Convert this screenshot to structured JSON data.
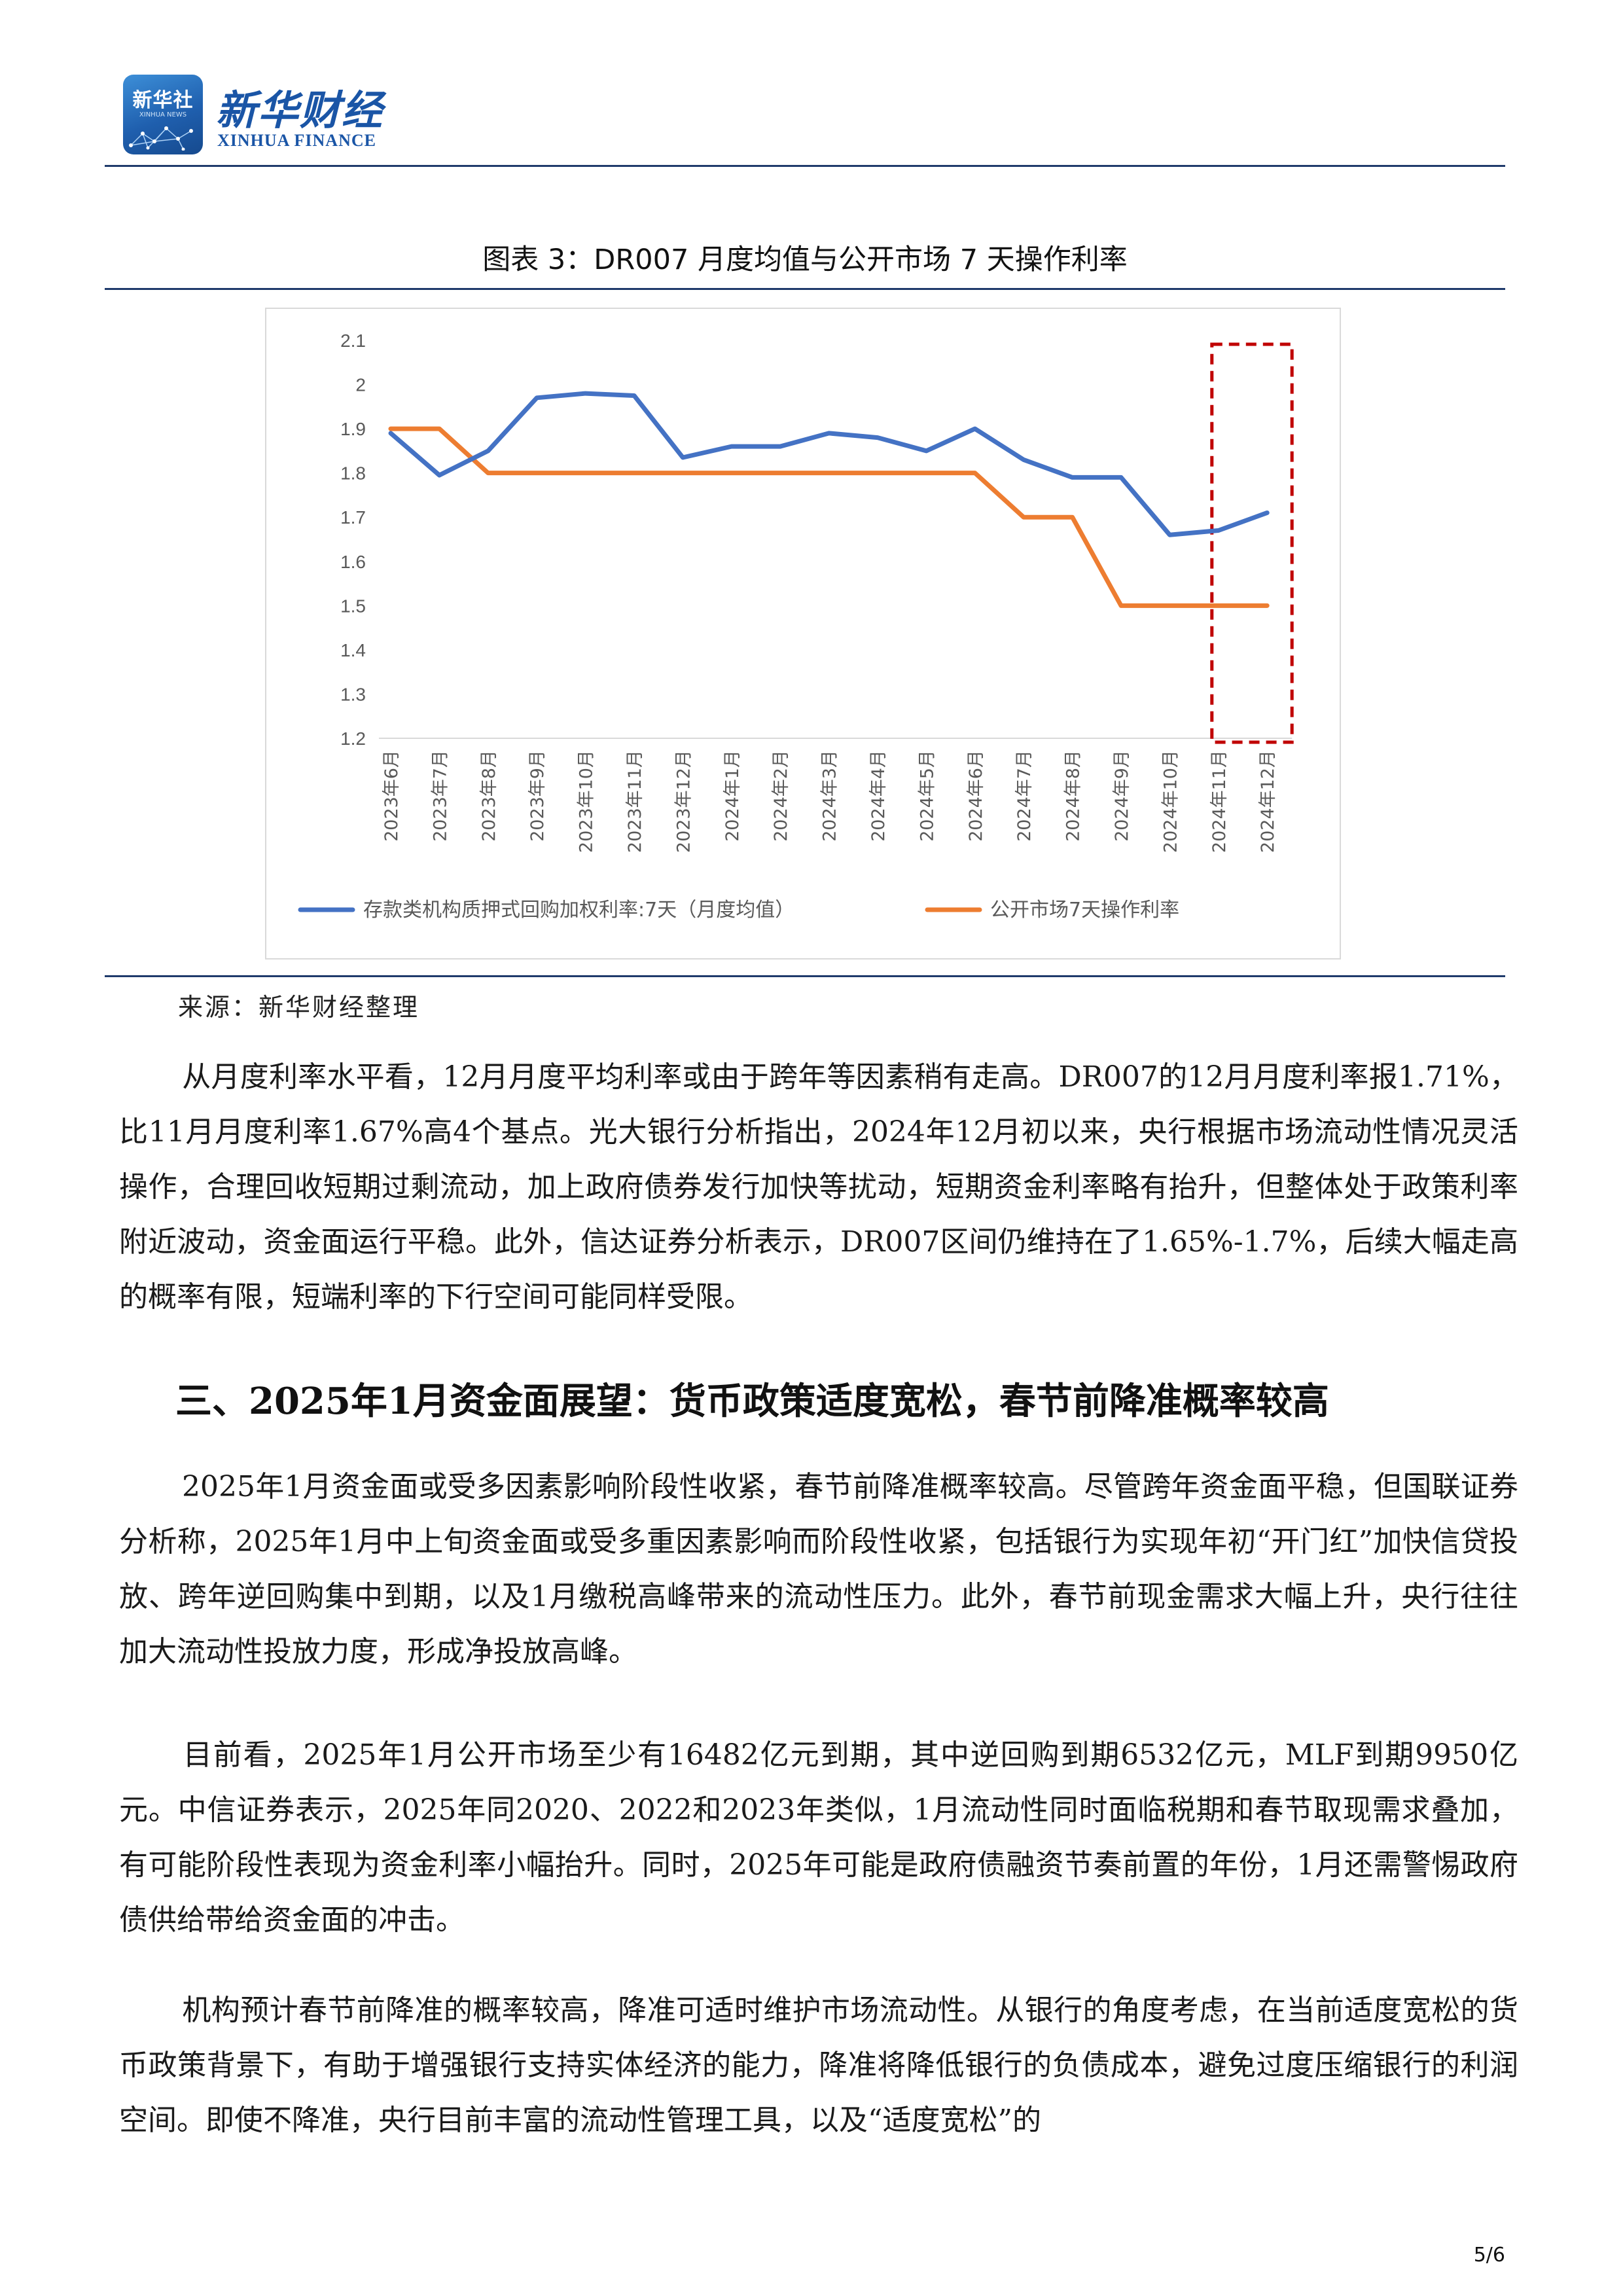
{
  "header": {
    "badge_text": "新华社",
    "badge_sub": "XINHUA NEWS",
    "brand_cn": "新华财经",
    "brand_en": "XINHUA FINANCE"
  },
  "figure": {
    "title": "图表 3：DR007 月度均值与公开市场 7 天操作利率",
    "source": "来源：新华财经整理"
  },
  "chart_data": {
    "type": "line",
    "categories": [
      "2023年6月",
      "2023年7月",
      "2023年8月",
      "2023年9月",
      "2023年10月",
      "2023年11月",
      "2023年12月",
      "2024年1月",
      "2024年2月",
      "2024年3月",
      "2024年4月",
      "2024年5月",
      "2024年6月",
      "2024年7月",
      "2024年8月",
      "2024年9月",
      "2024年10月",
      "2024年11月",
      "2024年12月"
    ],
    "series": [
      {
        "name": "存款类机构质押式回购加权利率:7天（月度均值）",
        "color": "#4472C4",
        "values": [
          1.89,
          1.795,
          1.85,
          1.97,
          1.98,
          1.975,
          1.835,
          1.86,
          1.86,
          1.89,
          1.88,
          1.85,
          1.9,
          1.83,
          1.79,
          1.79,
          1.66,
          1.67,
          1.71
        ]
      },
      {
        "name": "公开市场7天操作利率",
        "color": "#ED7D31",
        "values": [
          1.9,
          1.9,
          1.8,
          1.8,
          1.8,
          1.8,
          1.8,
          1.8,
          1.8,
          1.8,
          1.8,
          1.8,
          1.8,
          1.7,
          1.7,
          1.5,
          1.5,
          1.5,
          1.5
        ]
      }
    ],
    "y_ticks": [
      "2.1",
      "2",
      "1.9",
      "1.8",
      "1.7",
      "1.6",
      "1.5",
      "1.4",
      "1.3",
      "1.2"
    ],
    "ylim": [
      1.2,
      2.1
    ],
    "grid": false,
    "legend": "bottom",
    "highlight": {
      "from": "2024年11月",
      "to": "2024年12月",
      "style": "red dashed box",
      "color": "#C00000"
    }
  },
  "body": {
    "p1": "从月度利率水平看，12月月度平均利率或由于跨年等因素稍有走高。DR007的12月月度利率报1.71%，比11月月度利率1.67%高4个基点。光大银行分析指出，2024年12月初以来，央行根据市场流动性情况灵活操作，合理回收短期过剩流动，加上政府债券发行加快等扰动，短期资金利率略有抬升，但整体处于政策利率附近波动，资金面运行平稳。此外，信达证券分析表示，DR007区间仍维持在了1.65%-1.7%，后续大幅走高的概率有限，短端利率的下行空间可能同样受限。",
    "heading": "三、2025年1月资金面展望：货币政策适度宽松，春节前降准概率较高",
    "p2": "2025年1月资金面或受多因素影响阶段性收紧，春节前降准概率较高。尽管跨年资金面平稳，但国联证券分析称，2025年1月中上旬资金面或受多重因素影响而阶段性收紧，包括银行为实现年初“开门红”加快信贷投放、跨年逆回购集中到期，以及1月缴税高峰带来的流动性压力。此外，春节前现金需求大幅上升，央行往往加大流动性投放力度，形成净投放高峰。",
    "p3": "目前看，2025年1月公开市场至少有16482亿元到期，其中逆回购到期6532亿元，MLF到期9950亿元。中信证券表示，2025年同2020、2022和2023年类似，1月流动性同时面临税期和春节取现需求叠加，有可能阶段性表现为资金利率小幅抬升。同时，2025年可能是政府债融资节奏前置的年份，1月还需警惕政府债供给带给资金面的冲击。",
    "p4": "机构预计春节前降准的概率较高，降准可适时维护市场流动性。从银行的角度考虑，在当前适度宽松的货币政策背景下，有助于增强银行支持实体经济的能力，降准将降低银行的负债成本，避免过度压缩银行的利润空间。即使不降准，央行目前丰富的流动性管理工具，以及“适度宽松”的",
    "page": "5/6"
  }
}
